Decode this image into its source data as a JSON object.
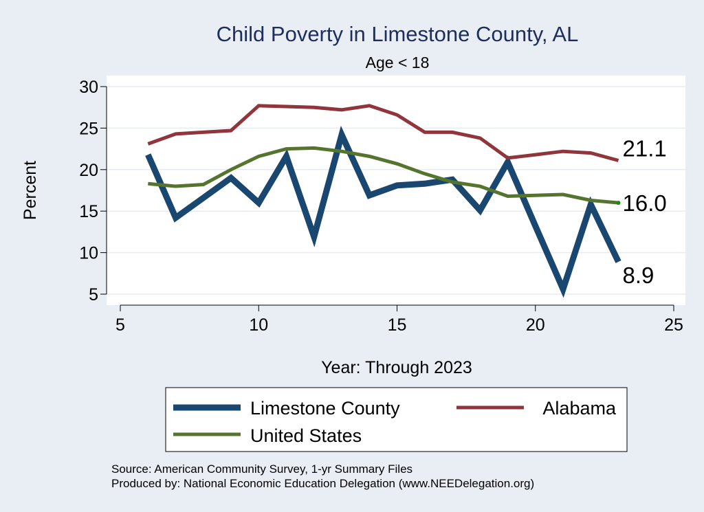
{
  "chart_data": {
    "type": "line",
    "title": "Child Poverty in Limestone County, AL",
    "subtitle": "Age < 18",
    "xlabel": "Year: Through 2023",
    "ylabel": "Percent",
    "xlim": [
      5,
      25
    ],
    "ylim": [
      4.5,
      31
    ],
    "xticks": [
      5,
      10,
      15,
      20,
      25
    ],
    "yticks": [
      5,
      10,
      15,
      20,
      25,
      30
    ],
    "grid": true,
    "legend_position": "bottom",
    "series": [
      {
        "name": "Limestone County",
        "color": "#1a476f",
        "x": [
          6,
          7,
          8,
          9,
          10,
          11,
          12,
          13,
          14,
          15,
          16,
          17,
          18,
          19,
          20,
          21,
          22,
          23
        ],
        "values": [
          21.8,
          14.2,
          16.6,
          19.0,
          16.0,
          21.6,
          11.9,
          24.2,
          16.9,
          18.1,
          18.3,
          18.8,
          15.1,
          20.9,
          13.2,
          5.6,
          15.8,
          8.9
        ],
        "end_label": "8.9"
      },
      {
        "name": "Alabama",
        "color": "#90353b",
        "x": [
          6,
          7,
          8,
          9,
          10,
          11,
          12,
          13,
          14,
          15,
          16,
          17,
          18,
          19,
          20,
          21,
          22,
          23
        ],
        "values": [
          23.1,
          24.3,
          24.5,
          24.7,
          27.7,
          27.6,
          27.5,
          27.2,
          27.7,
          26.6,
          24.5,
          24.5,
          23.8,
          21.4,
          21.8,
          22.2,
          22.0,
          21.1
        ],
        "end_label": "21.1"
      },
      {
        "name": "United States",
        "color": "#55752f",
        "x": [
          6,
          7,
          8,
          9,
          10,
          11,
          12,
          13,
          14,
          15,
          16,
          17,
          18,
          19,
          20,
          21,
          22,
          23
        ],
        "values": [
          18.3,
          18.0,
          18.2,
          20.0,
          21.6,
          22.5,
          22.6,
          22.2,
          21.6,
          20.7,
          19.5,
          18.5,
          18.0,
          16.8,
          16.9,
          17.0,
          16.3,
          16.0
        ],
        "end_label": "16.0"
      }
    ],
    "notes": [
      "Source: American Community Survey, 1-yr Summary Files",
      "Produced by: National Economic Education Delegation (www.NEEDelegation.org)"
    ]
  }
}
